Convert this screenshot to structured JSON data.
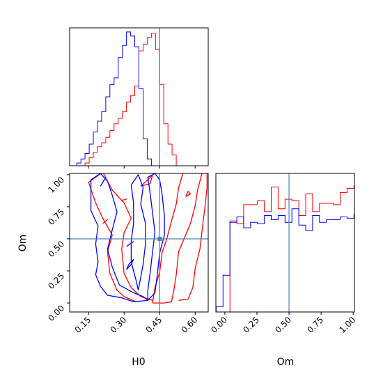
{
  "chart_data": {
    "type": "corner",
    "parameters": [
      "H0",
      "Om"
    ],
    "truths": {
      "H0": 0.45,
      "Om": 0.5
    },
    "truth_color": "#4682b4",
    "colors": {
      "series_a": "#ff0000",
      "series_b": "#0000ff"
    },
    "axes": {
      "H0": {
        "label": "H0",
        "range": [
          0.07,
          0.655
        ],
        "ticks": [
          0.15,
          0.3,
          0.45,
          0.6
        ],
        "tick_labels": [
          "0.15",
          "0.30",
          "0.45",
          "0.60"
        ]
      },
      "Om": {
        "label": "Om",
        "range": [
          -0.07,
          1.01
        ],
        "ticks": [
          0.0,
          0.25,
          0.5,
          0.75,
          1.0
        ],
        "tick_labels": [
          "0.00",
          "0.25",
          "0.50",
          "0.75",
          "1.00"
        ]
      }
    },
    "hist_H0": {
      "bin_start": 0.1,
      "bin_width": 0.0175,
      "series": [
        {
          "color": "#ff0000",
          "values": [
            0,
            0,
            0.02,
            0.06,
            0.1,
            0.14,
            0.17,
            0.21,
            0.26,
            0.31,
            0.35,
            0.4,
            0.47,
            0.52,
            0.59,
            0.85,
            0.9,
            0.95,
            0.98,
            0.86,
            0.6,
            0.31,
            0.16,
            0.08
          ]
        },
        {
          "color": "#0000ff",
          "values": [
            0.02,
            0.05,
            0.09,
            0.16,
            0.25,
            0.33,
            0.4,
            0.51,
            0.6,
            0.65,
            0.8,
            0.89,
            0.99,
            0.96,
            0.88,
            0.57,
            0.2,
            0.05,
            0,
            0,
            0,
            0,
            0,
            0
          ]
        }
      ]
    },
    "hist_Om": {
      "bin_start": -0.068,
      "bin_width": 0.0537,
      "series": [
        {
          "color": "#ff0000",
          "values": [
            0,
            0,
            0.67,
            0.65,
            0.79,
            0.79,
            0.82,
            0.74,
            0.92,
            0.76,
            0.83,
            0.82,
            0.71,
            0.87,
            0.74,
            0.8,
            0.8,
            0.79,
            0.88,
            0.91,
            0.93,
            0.89,
            0.14,
            0.14
          ]
        },
        {
          "color": "#0000ff",
          "values": [
            0.04,
            0.27,
            0.66,
            0.7,
            0.62,
            0.66,
            0.65,
            0.71,
            0.68,
            0.71,
            0.66,
            0.76,
            0.64,
            0.6,
            0.71,
            0.66,
            0.68,
            0.68,
            0.7,
            0.69,
            0.72,
            0.67,
            0.14,
            0.14
          ]
        }
      ]
    },
    "contours": [
      {
        "color": "#ff0000",
        "points": [
          [
            0.42,
            0.0
          ],
          [
            0.47,
            0.0
          ],
          [
            0.5,
            0.01
          ],
          [
            0.51,
            0.1
          ],
          [
            0.52,
            0.22
          ],
          [
            0.53,
            0.4
          ],
          [
            0.56,
            0.53
          ],
          [
            0.58,
            0.62
          ],
          [
            0.6,
            0.76
          ],
          [
            0.61,
            0.88
          ],
          [
            0.63,
            1.02
          ],
          [
            0.55,
            1.02
          ],
          [
            0.53,
            0.9
          ],
          [
            0.52,
            0.77
          ],
          [
            0.5,
            0.64
          ],
          [
            0.48,
            0.5
          ],
          [
            0.46,
            0.39
          ],
          [
            0.45,
            0.24
          ],
          [
            0.43,
            0.12
          ],
          [
            0.42,
            0.0
          ]
        ]
      },
      {
        "color": "#ff0000",
        "points": [
          [
            0.53,
            0.02
          ],
          [
            0.57,
            0.03
          ],
          [
            0.59,
            0.12
          ],
          [
            0.6,
            0.27
          ],
          [
            0.62,
            0.42
          ],
          [
            0.63,
            0.58
          ],
          [
            0.64,
            0.73
          ],
          [
            0.65,
            0.9
          ],
          [
            0.65,
            1.02
          ]
        ]
      },
      {
        "color": "#ff0000",
        "points": [
          [
            0.35,
            0.01
          ],
          [
            0.3,
            0.05
          ],
          [
            0.27,
            0.1
          ],
          [
            0.24,
            0.23
          ],
          [
            0.23,
            0.4
          ],
          [
            0.25,
            0.53
          ],
          [
            0.21,
            0.66
          ],
          [
            0.18,
            0.78
          ],
          [
            0.15,
            0.94
          ],
          [
            0.21,
            1.02
          ],
          [
            0.25,
            0.88
          ],
          [
            0.3,
            0.78
          ],
          [
            0.33,
            0.66
          ],
          [
            0.3,
            0.55
          ],
          [
            0.29,
            0.42
          ],
          [
            0.3,
            0.23
          ],
          [
            0.33,
            0.12
          ],
          [
            0.37,
            0.05
          ],
          [
            0.42,
            0.02
          ]
        ]
      },
      {
        "color": "#ff0000",
        "points": [
          [
            0.37,
            0.91
          ],
          [
            0.4,
            0.96
          ],
          [
            0.42,
            1.0
          ],
          [
            0.41,
            0.93
          ],
          [
            0.37,
            0.91
          ]
        ]
      },
      {
        "color": "#ff0000",
        "points": [
          [
            0.56,
            0.83
          ],
          [
            0.57,
            0.87
          ],
          [
            0.58,
            0.85
          ],
          [
            0.56,
            0.83
          ]
        ]
      },
      {
        "color": "#ff0000",
        "points": [
          [
            0.29,
            0.8
          ],
          [
            0.31,
            0.81
          ],
          [
            0.29,
            0.8
          ]
        ]
      },
      {
        "color": "#ff0000",
        "points": [
          [
            0.21,
            0.62
          ],
          [
            0.23,
            0.65
          ],
          [
            0.21,
            0.62
          ]
        ]
      },
      {
        "color": "#0000ff",
        "points": [
          [
            0.4,
            0.02
          ],
          [
            0.43,
            0.08
          ],
          [
            0.44,
            0.22
          ],
          [
            0.45,
            0.39
          ],
          [
            0.47,
            0.53
          ],
          [
            0.47,
            0.68
          ],
          [
            0.46,
            0.85
          ],
          [
            0.45,
            0.96
          ],
          [
            0.43,
            1.01
          ],
          [
            0.4,
            0.98
          ],
          [
            0.41,
            0.85
          ],
          [
            0.42,
            0.7
          ],
          [
            0.43,
            0.55
          ],
          [
            0.42,
            0.4
          ],
          [
            0.41,
            0.24
          ],
          [
            0.4,
            0.1
          ],
          [
            0.4,
            0.02
          ]
        ]
      },
      {
        "color": "#0000ff",
        "points": [
          [
            0.4,
            0.02
          ],
          [
            0.34,
            0.01
          ],
          [
            0.29,
            0.04
          ],
          [
            0.23,
            0.06
          ],
          [
            0.2,
            0.13
          ],
          [
            0.18,
            0.22
          ],
          [
            0.19,
            0.32
          ],
          [
            0.18,
            0.46
          ],
          [
            0.19,
            0.6
          ],
          [
            0.16,
            0.72
          ],
          [
            0.16,
            0.85
          ],
          [
            0.16,
            0.96
          ],
          [
            0.2,
            1.01
          ],
          [
            0.23,
            0.95
          ],
          [
            0.25,
            0.84
          ],
          [
            0.27,
            0.71
          ],
          [
            0.25,
            0.57
          ],
          [
            0.23,
            0.42
          ],
          [
            0.25,
            0.28
          ],
          [
            0.28,
            0.14
          ],
          [
            0.34,
            0.08
          ],
          [
            0.38,
            0.05
          ],
          [
            0.4,
            0.02
          ]
        ]
      },
      {
        "color": "#0000ff",
        "points": [
          [
            0.36,
            0.1
          ],
          [
            0.38,
            0.3
          ],
          [
            0.39,
            0.46
          ],
          [
            0.39,
            0.62
          ],
          [
            0.37,
            0.77
          ],
          [
            0.38,
            0.9
          ],
          [
            0.36,
            1.0
          ],
          [
            0.33,
            0.92
          ],
          [
            0.34,
            0.78
          ],
          [
            0.34,
            0.62
          ],
          [
            0.33,
            0.48
          ],
          [
            0.33,
            0.32
          ],
          [
            0.35,
            0.18
          ],
          [
            0.36,
            0.1
          ]
        ]
      },
      {
        "color": "#0000ff",
        "points": [
          [
            0.31,
            0.26
          ],
          [
            0.33,
            0.3
          ],
          [
            0.34,
            0.34
          ],
          [
            0.32,
            0.3
          ],
          [
            0.31,
            0.26
          ]
        ]
      },
      {
        "color": "#0000ff",
        "points": [
          [
            0.2,
            0.91
          ],
          [
            0.22,
            0.97
          ],
          [
            0.2,
            0.91
          ]
        ]
      },
      {
        "color": "#0000ff",
        "points": [
          [
            0.31,
            0.44
          ],
          [
            0.34,
            0.48
          ],
          [
            0.31,
            0.44
          ]
        ]
      }
    ]
  }
}
